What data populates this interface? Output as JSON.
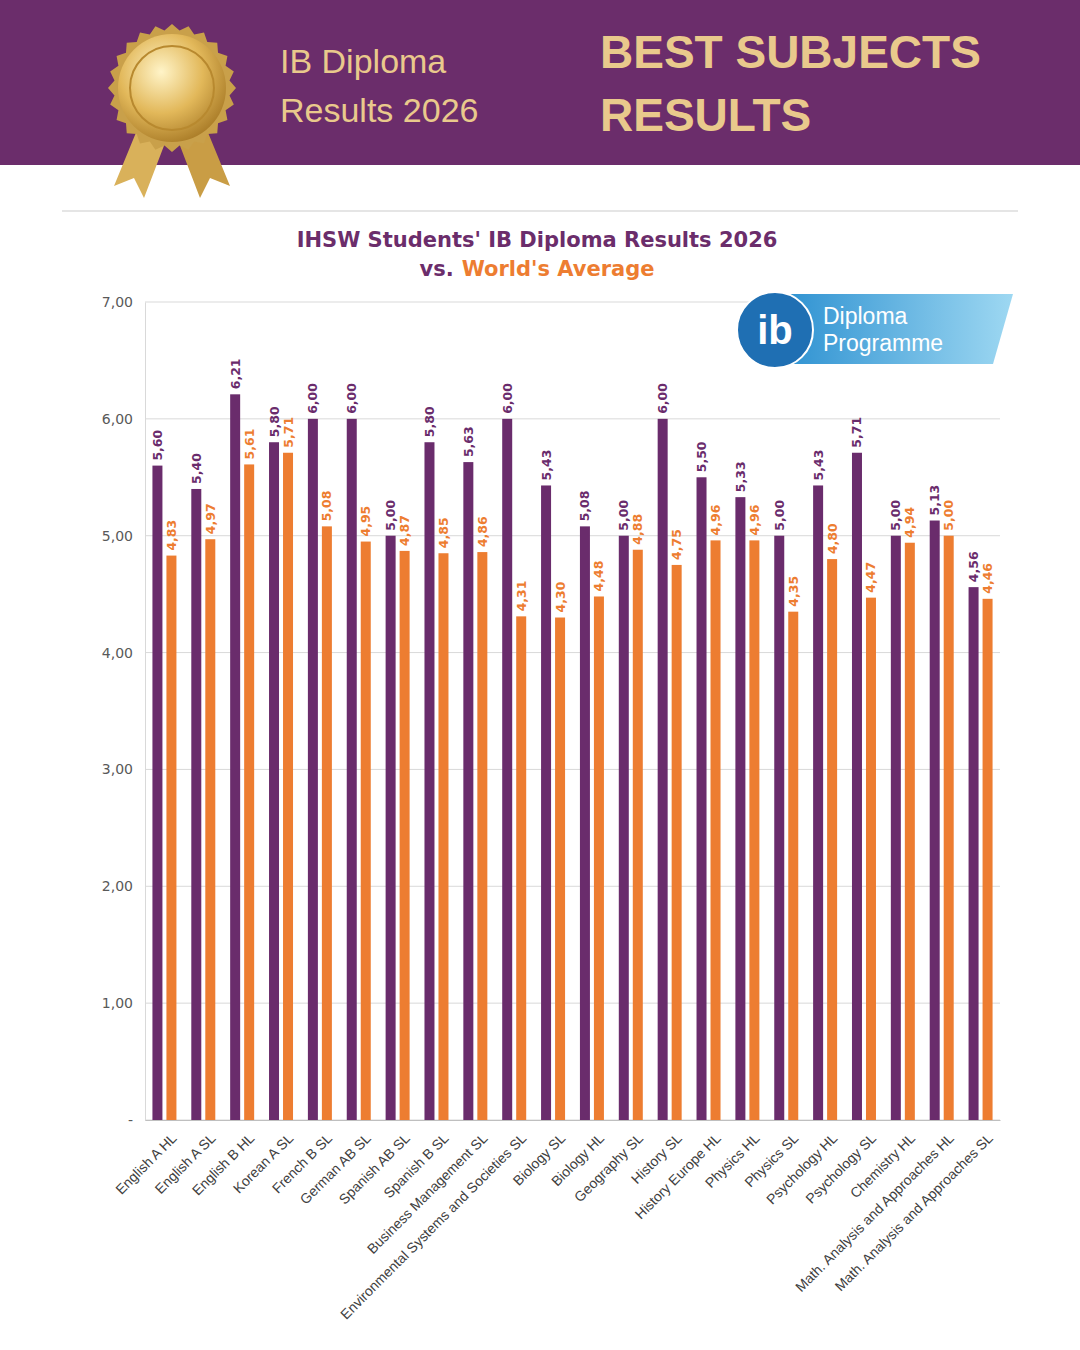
{
  "header": {
    "left": [
      "IB Diploma",
      "Results 2026"
    ],
    "right": [
      "BEST SUBJECTS",
      "RESULTS"
    ]
  },
  "logo": {
    "mark": "ib",
    "lines": [
      "Diploma",
      "Programme"
    ]
  },
  "chart_data": {
    "type": "bar",
    "title": "IHSW Students' IB Diploma Results 2026",
    "subtitle": "vs.",
    "categories": [
      "English A HL",
      "English A SL",
      "English B HL",
      "Korean A SL",
      "French B SL",
      "German AB SL",
      "Spanish AB SL",
      "Spanish B SL",
      "Business Management SL",
      "Environmental Systems and Societies SL",
      "Biology SL",
      "Biology HL",
      "Geography SL",
      "History SL",
      "History Europe HL",
      "Physics HL",
      "Physics SL",
      "Psychology HL",
      "Psychology SL",
      "Chemistry HL",
      "Math. Analysis and Approaches HL",
      "Math. Analysis and Approaches SL"
    ],
    "series": [
      {
        "color": "#6a2c6c",
        "values": [
          5.6,
          5.4,
          6.21,
          5.8,
          6.0,
          6.0,
          5.0,
          5.8,
          5.63,
          6.0,
          5.43,
          5.08,
          5.0,
          6.0,
          5.5,
          5.33,
          5.0,
          5.43,
          5.71,
          5.0,
          5.13,
          4.56
        ],
        "value_labels": [
          "5,60",
          "5,40",
          "6,21",
          "5,80",
          "6,00",
          "6,00",
          "5,00",
          "5,80",
          "5,63",
          "6,00",
          "5,43",
          "5,08",
          "5,00",
          "6,00",
          "5,50",
          "5,33",
          "5,00",
          "5,43",
          "5,71",
          "5,00",
          "5,13",
          "4,56"
        ]
      },
      {
        "name": "World's Average",
        "color": "#ed7d31",
        "values": [
          4.83,
          4.97,
          5.61,
          5.71,
          5.08,
          4.95,
          4.87,
          4.85,
          4.86,
          4.31,
          4.3,
          4.48,
          4.88,
          4.75,
          4.96,
          4.96,
          4.35,
          4.8,
          4.47,
          4.94,
          5.0,
          4.46
        ],
        "value_labels": [
          "4,83",
          "4,97",
          "5,61",
          "5,71",
          "5,08",
          "4,95",
          "4,87",
          "4,85",
          "4,86",
          "4,31",
          "4,30",
          "4,48",
          "4,88",
          "4,75",
          "4,96",
          "4,96",
          "4,35",
          "4,80",
          "4,47",
          "4,94",
          "5,00",
          "4,46"
        ]
      }
    ],
    "ylim": [
      0,
      7
    ],
    "yticks": [
      {
        "value": 0,
        "label": "-"
      },
      {
        "value": 1,
        "label": "1,00"
      },
      {
        "value": 2,
        "label": "2,00"
      },
      {
        "value": 3,
        "label": "3,00"
      },
      {
        "value": 4,
        "label": "4,00"
      },
      {
        "value": 5,
        "label": "5,00"
      },
      {
        "value": 6,
        "label": "6,00"
      },
      {
        "value": 7,
        "label": "7,00"
      }
    ],
    "grid": true,
    "data_labels": true
  }
}
